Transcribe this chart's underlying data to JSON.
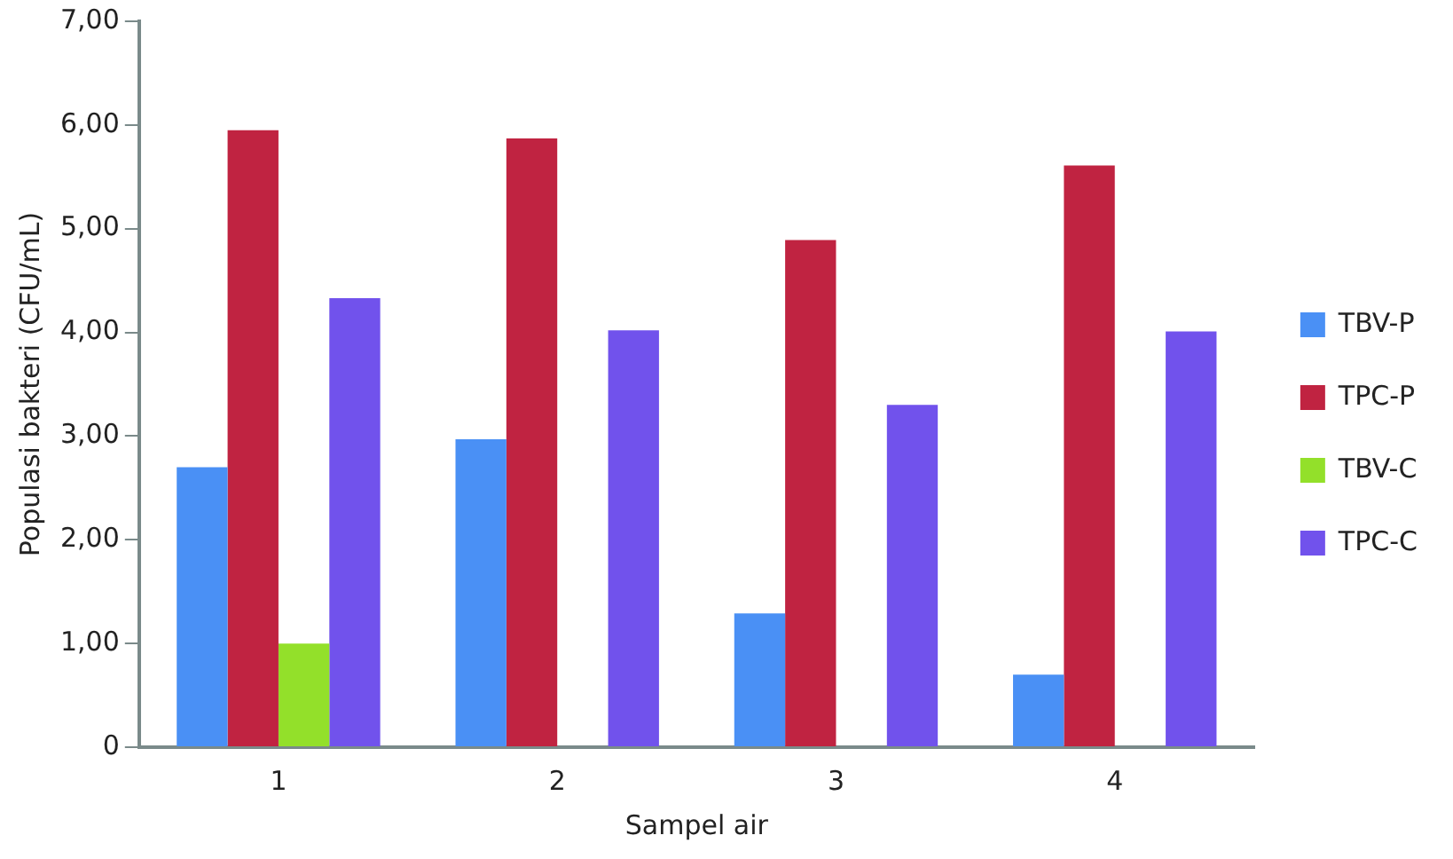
{
  "chart_data": {
    "type": "bar",
    "xlabel": "Sampel air",
    "ylabel": "Populasi bakteri (CFU/mL)",
    "categories": [
      "1",
      "2",
      "3",
      "4"
    ],
    "series": [
      {
        "name": "TBV-P",
        "color": "#4a90f5",
        "values": [
          2.7,
          2.97,
          1.29,
          0.7
        ]
      },
      {
        "name": "TPC-P",
        "color": "#c02341",
        "values": [
          5.95,
          5.87,
          4.89,
          5.61
        ]
      },
      {
        "name": "TBV-C",
        "color": "#93e02a",
        "values": [
          1.0,
          0,
          0,
          0
        ]
      },
      {
        "name": "TPC-C",
        "color": "#7152ec",
        "values": [
          4.33,
          4.02,
          3.3,
          4.01
        ]
      }
    ],
    "ylim": [
      0,
      7
    ],
    "yticks": [
      {
        "value": 0,
        "label": "0"
      },
      {
        "value": 1,
        "label": "1,00"
      },
      {
        "value": 2,
        "label": "2,00"
      },
      {
        "value": 3,
        "label": "3,00"
      },
      {
        "value": 4,
        "label": "4,00"
      },
      {
        "value": 5,
        "label": "5,00"
      },
      {
        "value": 6,
        "label": "6,00"
      },
      {
        "value": 7,
        "label": "7,00"
      }
    ],
    "grid": false,
    "legend": "right"
  }
}
